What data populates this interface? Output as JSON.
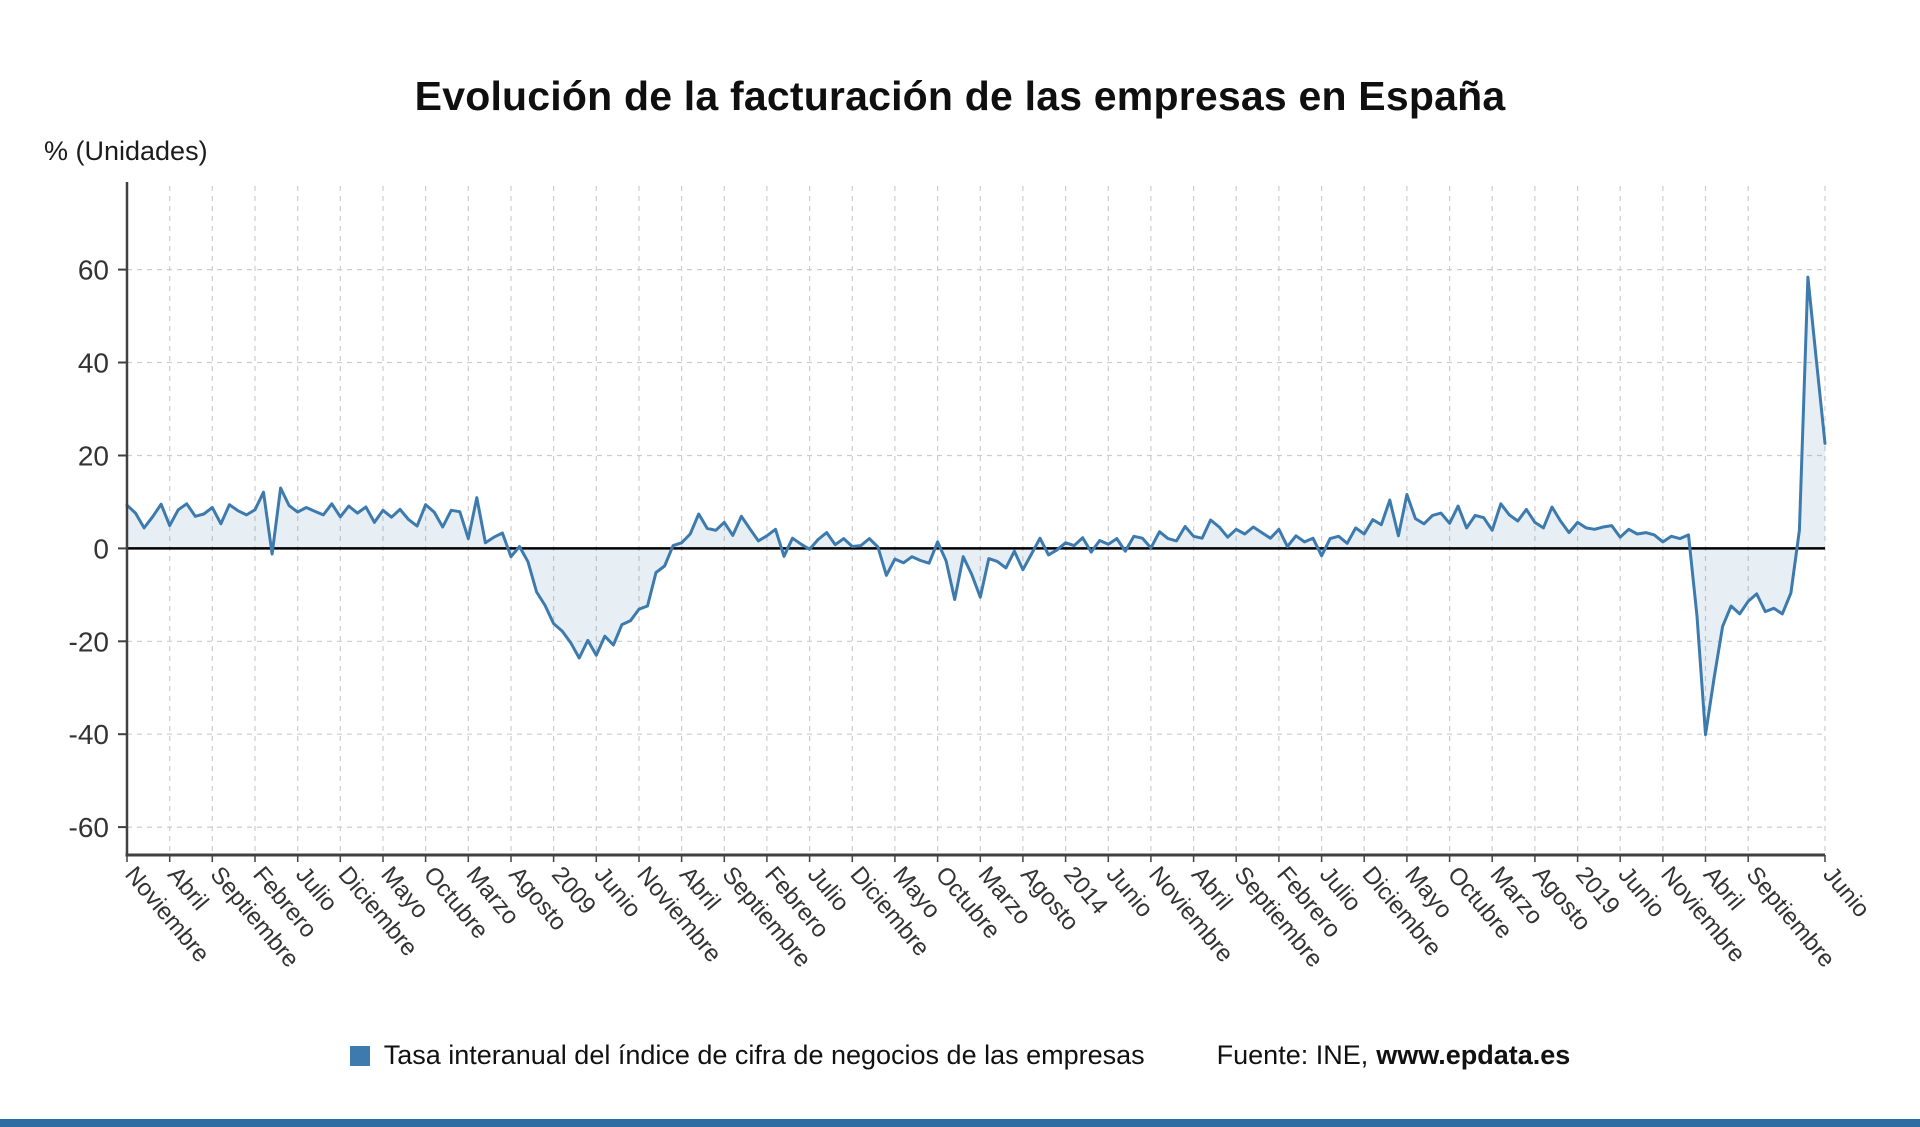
{
  "page": {
    "title": "Evolución de la facturación de las empresas en España",
    "y_axis_unit": "% (Unidades)",
    "legend": {
      "label": "Tasa interanual del índice de cifra de negocios de las empresas"
    },
    "source": {
      "prefix": "Fuente: INE,",
      "site": "www.epdata.es"
    },
    "footer_bar_color": "#2e6da4"
  },
  "chart_data": {
    "type": "line",
    "title": "Evolución de la facturación de las empresas en España",
    "xlabel": "",
    "ylabel": "% (Unidades)",
    "ylim": [
      -66,
      78
    ],
    "yticks": [
      -60,
      -40,
      -20,
      0,
      20,
      40,
      60
    ],
    "grid": true,
    "legend_position": "bottom",
    "line_color": "#3d7aad",
    "fill_color": "rgba(61,122,173,0.12)",
    "zero_line_color": "#000000",
    "x_tick_labels": [
      {
        "i": 0,
        "label": "Noviembre"
      },
      {
        "i": 5,
        "label": "Abril"
      },
      {
        "i": 10,
        "label": "Septiembre"
      },
      {
        "i": 15,
        "label": "Febrero"
      },
      {
        "i": 20,
        "label": "Julio"
      },
      {
        "i": 25,
        "label": "Diciembre"
      },
      {
        "i": 30,
        "label": "Mayo"
      },
      {
        "i": 35,
        "label": "Octubre"
      },
      {
        "i": 40,
        "label": "Marzo"
      },
      {
        "i": 45,
        "label": "Agosto"
      },
      {
        "i": 50,
        "label": "2009"
      },
      {
        "i": 55,
        "label": "Junio"
      },
      {
        "i": 60,
        "label": "Noviembre"
      },
      {
        "i": 65,
        "label": "Abril"
      },
      {
        "i": 70,
        "label": "Septiembre"
      },
      {
        "i": 75,
        "label": "Febrero"
      },
      {
        "i": 80,
        "label": "Julio"
      },
      {
        "i": 85,
        "label": "Diciembre"
      },
      {
        "i": 90,
        "label": "Mayo"
      },
      {
        "i": 95,
        "label": "Octubre"
      },
      {
        "i": 100,
        "label": "Marzo"
      },
      {
        "i": 105,
        "label": "Agosto"
      },
      {
        "i": 110,
        "label": "2014"
      },
      {
        "i": 115,
        "label": "Junio"
      },
      {
        "i": 120,
        "label": "Noviembre"
      },
      {
        "i": 125,
        "label": "Abril"
      },
      {
        "i": 130,
        "label": "Septiembre"
      },
      {
        "i": 135,
        "label": "Febrero"
      },
      {
        "i": 140,
        "label": "Julio"
      },
      {
        "i": 145,
        "label": "Diciembre"
      },
      {
        "i": 150,
        "label": "Mayo"
      },
      {
        "i": 155,
        "label": "Octubre"
      },
      {
        "i": 160,
        "label": "Marzo"
      },
      {
        "i": 165,
        "label": "Agosto"
      },
      {
        "i": 170,
        "label": "2019"
      },
      {
        "i": 175,
        "label": "Junio"
      },
      {
        "i": 180,
        "label": "Noviembre"
      },
      {
        "i": 185,
        "label": "Abril"
      },
      {
        "i": 190,
        "label": "Septiembre"
      },
      {
        "i": 199,
        "label": "Junio"
      }
    ],
    "series": [
      {
        "name": "Tasa interanual del índice de cifra de negocios de las empresas",
        "values": [
          9.3,
          7.6,
          4.4,
          6.8,
          9.5,
          4.9,
          8.3,
          9.6,
          6.9,
          7.4,
          8.8,
          5.3,
          9.4,
          8.1,
          7.2,
          8.3,
          12.1,
          -1.2,
          13.0,
          9.2,
          7.8,
          8.8,
          8.0,
          7.2,
          9.6,
          6.8,
          9.1,
          7.6,
          8.9,
          5.6,
          8.2,
          6.7,
          8.4,
          6.2,
          4.8,
          9.4,
          7.8,
          4.6,
          8.2,
          7.9,
          2.1,
          10.9,
          1.2,
          2.4,
          3.3,
          -1.8,
          0.4,
          -2.9,
          -9.4,
          -12.3,
          -16.2,
          -17.8,
          -20.3,
          -23.6,
          -19.8,
          -23.0,
          -18.9,
          -20.8,
          -16.4,
          -15.6,
          -13.1,
          -12.4,
          -5.2,
          -3.8,
          0.6,
          1.2,
          3.1,
          7.4,
          4.3,
          3.9,
          5.6,
          2.8,
          6.9,
          4.2,
          1.6,
          2.7,
          4.1,
          -1.7,
          2.2,
          0.9,
          -0.2,
          1.9,
          3.4,
          0.8,
          2.1,
          0.4,
          0.6,
          2.1,
          0.3,
          -5.8,
          -2.3,
          -3.1,
          -1.8,
          -2.6,
          -3.2,
          1.4,
          -2.7,
          -11.0,
          -1.8,
          -5.6,
          -10.5,
          -2.2,
          -2.8,
          -4.2,
          -0.6,
          -4.6,
          -1.2,
          2.2,
          -1.4,
          -0.3,
          1.2,
          0.6,
          2.3,
          -0.8,
          1.7,
          0.9,
          2.1,
          -0.6,
          2.6,
          2.2,
          0.1,
          3.6,
          2.1,
          1.6,
          4.7,
          2.6,
          2.2,
          6.1,
          4.6,
          2.4,
          4.1,
          3.1,
          4.6,
          3.4,
          2.2,
          4.1,
          0.4,
          2.7,
          1.4,
          2.2,
          -1.6,
          2.1,
          2.6,
          1.1,
          4.4,
          3.1,
          6.2,
          5.1,
          10.4,
          2.7,
          11.6,
          6.4,
          5.3,
          7.1,
          7.6,
          5.4,
          9.1,
          4.4,
          7.1,
          6.6,
          3.9,
          9.6,
          7.2,
          5.9,
          8.4,
          5.6,
          4.4,
          8.9,
          5.9,
          3.4,
          5.6,
          4.4,
          4.1,
          4.6,
          4.9,
          2.4,
          4.1,
          3.1,
          3.4,
          2.9,
          1.4,
          2.6,
          2.1,
          2.9,
          -14.6,
          -40.1,
          -27.9,
          -16.8,
          -12.4,
          -14.1,
          -11.4,
          -9.8,
          -13.6,
          -12.9,
          -14.1,
          -9.6,
          3.9,
          58.4,
          40.2,
          22.6
        ]
      }
    ]
  }
}
